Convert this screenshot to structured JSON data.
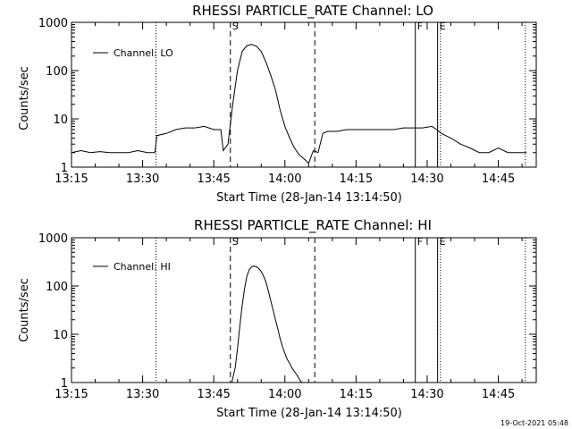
{
  "footer": {
    "timestamp": "19-Oct-2021 05:48"
  },
  "chart_data": [
    {
      "type": "line",
      "title": "RHESSI PARTICLE_RATE Channel: LO",
      "xlabel": "Start Time (28-Jan-14 13:14:50)",
      "ylabel": "Counts/sec",
      "y_scale": "log",
      "ylim": [
        1,
        1000
      ],
      "xlim_minutes": [
        0,
        98
      ],
      "x_tick_labels": [
        "13:15",
        "13:30",
        "13:45",
        "14:00",
        "14:15",
        "14:30",
        "14:45"
      ],
      "x_ticks_minutes": [
        0,
        15,
        30,
        45,
        60,
        75,
        90
      ],
      "y_ticks": [
        1,
        10,
        100,
        1000
      ],
      "y_tick_labels": [
        "1",
        "10",
        "100",
        "1000"
      ],
      "legend": {
        "position": "top-left",
        "label": "Channel: LO"
      },
      "markers": [
        {
          "label": "S",
          "minute": 33.5,
          "style": "dashed"
        },
        {
          "label": "",
          "minute": 51.3,
          "style": "dashed"
        },
        {
          "label": "",
          "minute": 17.8,
          "style": "dotted"
        },
        {
          "label": "",
          "minute": 77.8,
          "style": "dotted"
        },
        {
          "label": "",
          "minute": 95.7,
          "style": "dotted"
        },
        {
          "label": "F",
          "minute": 72.5,
          "style": "solid"
        },
        {
          "label": "E",
          "minute": 77.2,
          "style": "solid"
        }
      ],
      "series": [
        {
          "x": [
            0,
            2,
            4,
            6,
            8,
            10,
            12,
            14,
            16,
            17,
            17.6,
            18,
            20,
            22,
            24,
            26,
            28,
            30,
            31.5,
            32,
            33,
            34,
            35,
            36,
            37,
            38,
            39,
            40,
            41,
            42,
            43,
            44,
            45,
            46,
            47,
            48,
            49,
            50,
            51,
            52,
            53,
            54,
            56,
            58,
            60,
            62,
            64,
            66,
            68,
            70,
            72,
            74,
            76,
            77,
            78,
            80,
            82,
            84,
            86,
            88,
            90,
            92,
            94,
            96
          ],
          "y": [
            2,
            2.2,
            2,
            2.1,
            2,
            2,
            2,
            2.2,
            2,
            2,
            2,
            4.5,
            5,
            6,
            6.5,
            6.5,
            7,
            6,
            6,
            2.2,
            3,
            20,
            100,
            250,
            330,
            350,
            320,
            250,
            150,
            80,
            40,
            15,
            7,
            4,
            2.5,
            1.8,
            1.5,
            1.2,
            2.2,
            2,
            5,
            5.5,
            5.5,
            6,
            6,
            6,
            6,
            6,
            6,
            6.5,
            6.5,
            6.5,
            7,
            6,
            5,
            4,
            3,
            2.5,
            2,
            2,
            2.5,
            2,
            2,
            2
          ]
        }
      ]
    },
    {
      "type": "line",
      "title": "RHESSI PARTICLE_RATE Channel: HI",
      "xlabel": "Start Time (28-Jan-14 13:14:50)",
      "ylabel": "Counts/sec",
      "y_scale": "log",
      "ylim": [
        1,
        1000
      ],
      "xlim_minutes": [
        0,
        98
      ],
      "x_tick_labels": [
        "13:15",
        "13:30",
        "13:45",
        "14:00",
        "14:15",
        "14:30",
        "14:45"
      ],
      "x_ticks_minutes": [
        0,
        15,
        30,
        45,
        60,
        75,
        90
      ],
      "y_ticks": [
        1,
        10,
        100,
        1000
      ],
      "y_tick_labels": [
        "1",
        "10",
        "100",
        "1000"
      ],
      "legend": {
        "position": "top-left",
        "label": "Channel: HI"
      },
      "markers": [
        {
          "label": "S",
          "minute": 33.5,
          "style": "dashed"
        },
        {
          "label": "",
          "minute": 51.3,
          "style": "dashed"
        },
        {
          "label": "",
          "minute": 17.8,
          "style": "dotted"
        },
        {
          "label": "",
          "minute": 77.8,
          "style": "dotted"
        },
        {
          "label": "",
          "minute": 95.7,
          "style": "dotted"
        },
        {
          "label": "F",
          "minute": 72.5,
          "style": "solid"
        },
        {
          "label": "E",
          "minute": 77.2,
          "style": "solid"
        }
      ],
      "series": [
        {
          "x": [
            33.8,
            34.5,
            35,
            35.5,
            36,
            36.5,
            37,
            37.5,
            38,
            38.5,
            39,
            39.5,
            40,
            40.5,
            41,
            41.5,
            42,
            42.5,
            43,
            43.5,
            44,
            44.5,
            45,
            45.5,
            46,
            46.5,
            47,
            47.4,
            47.8,
            48.2,
            48.6
          ],
          "y": [
            1,
            2,
            5,
            15,
            40,
            90,
            160,
            220,
            250,
            260,
            250,
            230,
            200,
            160,
            120,
            80,
            50,
            32,
            20,
            13,
            8,
            5.5,
            4,
            3,
            2.5,
            2,
            1.7,
            1.5,
            1.3,
            1.1,
            1
          ]
        }
      ]
    }
  ]
}
